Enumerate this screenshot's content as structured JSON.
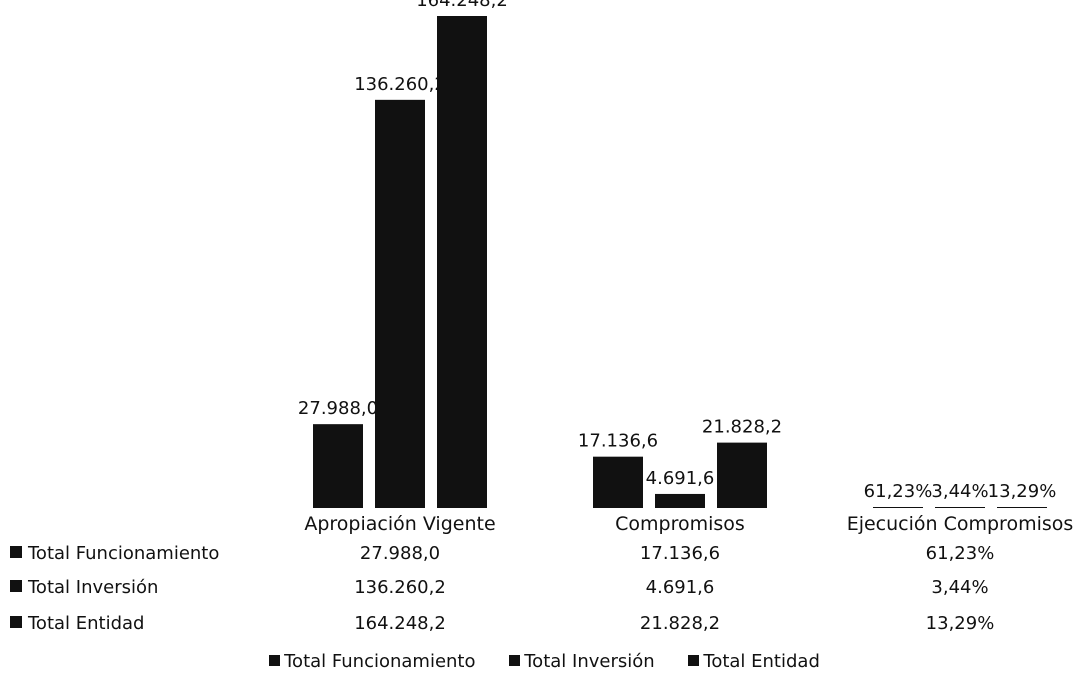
{
  "chart_data": {
    "type": "bar",
    "categories": [
      "Apropiación Vigente",
      "Compromisos",
      "Ejecución Compromisos"
    ],
    "series": [
      {
        "name": "Total Funcionamiento",
        "values": [
          27988.0,
          17136.6,
          61.23
        ],
        "labels": [
          "27.988,0",
          "17.136,6",
          "61,23%"
        ]
      },
      {
        "name": "Total Inversión",
        "values": [
          136260.2,
          4691.6,
          3.44
        ],
        "labels": [
          "136.260,2",
          "4.691,6",
          "3,44%"
        ]
      },
      {
        "name": "Total Entidad",
        "values": [
          164248.2,
          21828.2,
          13.29
        ],
        "labels": [
          "164.248,2",
          "21.828,2",
          "13,29%"
        ]
      }
    ],
    "ylim": [
      0,
      164248.2
    ],
    "grid": false,
    "legend_placement": "bottom",
    "data_table": true,
    "colors": {
      "bars": "#111111",
      "background": "#ffffff"
    }
  }
}
